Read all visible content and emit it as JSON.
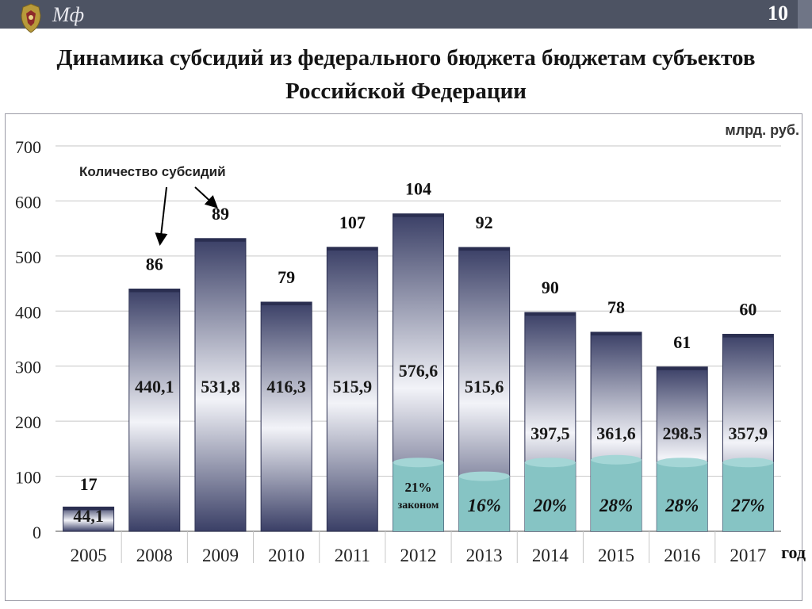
{
  "header": {
    "brand": "Мф",
    "slide_number": "10",
    "emblem_icon": "coat-of-arms-icon"
  },
  "title": "Динамика субсидий из федерального бюджета бюджетам субъектов Российской Федерации",
  "chart_data": {
    "type": "bar",
    "unit": "млрд. руб.",
    "xlabel": "год",
    "ylabel": "",
    "ylim": [
      0,
      700
    ],
    "yticks": [
      0,
      100,
      200,
      300,
      400,
      500,
      600,
      700
    ],
    "grid": true,
    "categories": [
      "2005",
      "2008",
      "2009",
      "2010",
      "2011",
      "2012",
      "2013",
      "2014",
      "2015",
      "2016",
      "2017"
    ],
    "values": [
      44.1,
      440.1,
      531.8,
      416.3,
      515.9,
      576.6,
      515.6,
      397.5,
      361.6,
      298.5,
      357.9
    ],
    "value_labels": [
      "44,1",
      "440,1",
      "531,8",
      "416,3",
      "515,9",
      "576,6",
      "515,6",
      "397,5",
      "361,6",
      "298.5",
      "357,9"
    ],
    "counts": [
      "17",
      "86",
      "89",
      "79",
      "107",
      "104",
      "92",
      "90",
      "78",
      "61",
      "60"
    ],
    "count_annotation": "Количество субсидий",
    "shares": [
      {
        "category": "2012",
        "value": 125,
        "label": "21%",
        "sublabel": "законом"
      },
      {
        "category": "2013",
        "value": 100,
        "label": "16%"
      },
      {
        "category": "2014",
        "value": 125,
        "label": "20%"
      },
      {
        "category": "2015",
        "value": 130,
        "label": "28%"
      },
      {
        "category": "2016",
        "value": 125,
        "label": "28%"
      },
      {
        "category": "2017",
        "value": 125,
        "label": "27%"
      }
    ],
    "colors": {
      "bar_dark": "#3a3f66",
      "bar_light": "#f2f3f8",
      "share": "#86c4c4",
      "share_top": "#a4d6d6",
      "grid": "#c6c6c6"
    }
  }
}
